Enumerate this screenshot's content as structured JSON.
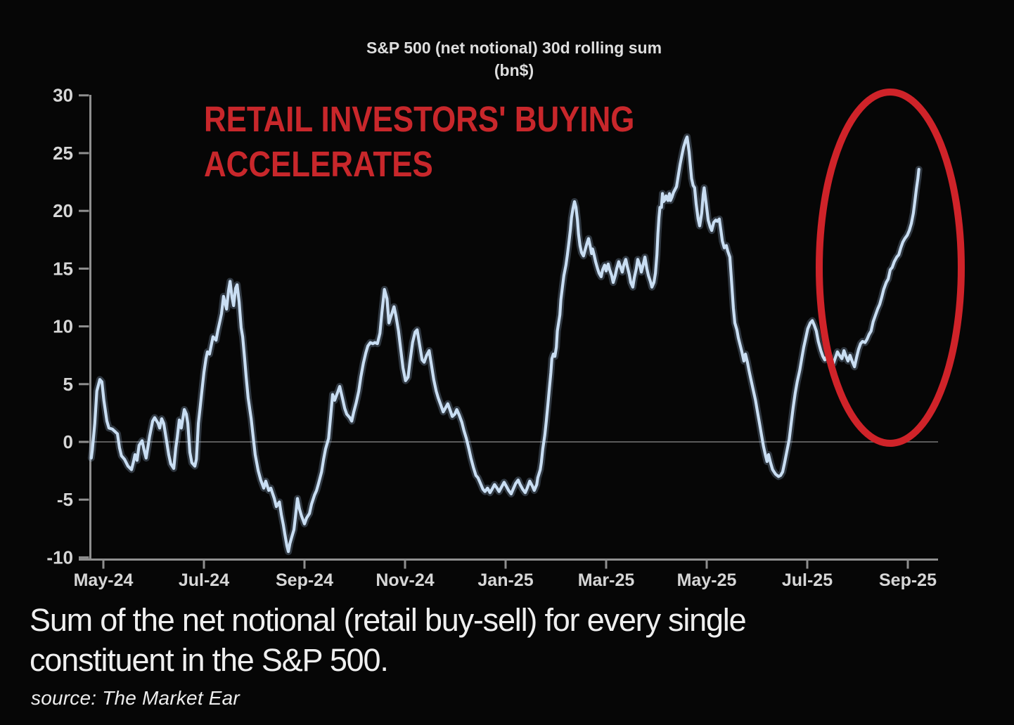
{
  "title": {
    "line1": "S&P 500 (net notional) 30d rolling sum",
    "line2": "(bn$)"
  },
  "annotation": {
    "line1": "RETAIL INVESTORS' BUYING",
    "line2": "ACCELERATES",
    "color": "#c8272b"
  },
  "caption": {
    "line1": "Sum of the net notional (retail buy-sell) for every single",
    "line2": "constituent in the S&P 500."
  },
  "source": {
    "text": "source: The Market Ear"
  },
  "colors": {
    "background": "#060606",
    "axis": "#8f8f8f",
    "zero_line": "#5a5a5a",
    "tick_text": "#d6d6d6",
    "series_line": "#c9def3",
    "series_glow": "rgba(165,198,232,0.26)",
    "highlight_red": "#cf2329"
  },
  "chart_data": {
    "type": "line",
    "title": "S&P 500 (net notional) 30d rolling sum (bn$)",
    "xlabel": "",
    "ylabel": "",
    "ylim": [
      -10,
      30
    ],
    "y_ticks": [
      30,
      25,
      20,
      15,
      10,
      5,
      0,
      -5,
      -10
    ],
    "x_tick_labels": [
      "May-24",
      "Jul-24",
      "Sep-24",
      "Nov-24",
      "Jan-25",
      "Mar-25",
      "May-25",
      "Jul-25",
      "Sep-25"
    ],
    "x_tick_months": [
      0,
      2,
      4,
      6,
      8,
      10,
      12,
      14,
      16
    ],
    "grid": "zero-line-only",
    "legend": "none",
    "x_unit": "months since May-24 tick",
    "highlight_ellipse": {
      "note": "circles the final acceleration into Sep-25",
      "color": "#cf2329"
    },
    "points": [
      [
        -0.24,
        -1.4
      ],
      [
        -0.22,
        -0.7
      ],
      [
        -0.17,
        1.6
      ],
      [
        -0.13,
        4.4
      ],
      [
        -0.07,
        5.4
      ],
      [
        -0.03,
        5.2
      ],
      [
        0.01,
        3.6
      ],
      [
        0.07,
        1.8
      ],
      [
        0.11,
        1.2
      ],
      [
        0.18,
        1.1
      ],
      [
        0.28,
        0.7
      ],
      [
        0.32,
        -0.5
      ],
      [
        0.36,
        -1.2
      ],
      [
        0.42,
        -1.5
      ],
      [
        0.49,
        -2.1
      ],
      [
        0.56,
        -2.4
      ],
      [
        0.6,
        -1.7
      ],
      [
        0.63,
        -1.1
      ],
      [
        0.67,
        -1.6
      ],
      [
        0.71,
        -0.3
      ],
      [
        0.77,
        0.1
      ],
      [
        0.81,
        -0.7
      ],
      [
        0.85,
        -1.4
      ],
      [
        0.92,
        0.5
      ],
      [
        0.98,
        1.8
      ],
      [
        1.02,
        2.1
      ],
      [
        1.09,
        1.6
      ],
      [
        1.12,
        1.2
      ],
      [
        1.16,
        2.0
      ],
      [
        1.2,
        1.6
      ],
      [
        1.26,
        0.0
      ],
      [
        1.3,
        -1.1
      ],
      [
        1.34,
        -1.9
      ],
      [
        1.4,
        -2.3
      ],
      [
        1.44,
        -0.5
      ],
      [
        1.47,
        0.4
      ],
      [
        1.51,
        1.9
      ],
      [
        1.55,
        1.2
      ],
      [
        1.61,
        2.8
      ],
      [
        1.65,
        2.4
      ],
      [
        1.68,
        1.6
      ],
      [
        1.72,
        -0.9
      ],
      [
        1.76,
        -1.8
      ],
      [
        1.82,
        -2.1
      ],
      [
        1.85,
        -1.5
      ],
      [
        1.89,
        1.6
      ],
      [
        1.92,
        2.8
      ],
      [
        1.96,
        4.4
      ],
      [
        2.0,
        6.0
      ],
      [
        2.04,
        7.2
      ],
      [
        2.07,
        7.8
      ],
      [
        2.11,
        7.6
      ],
      [
        2.18,
        9.1
      ],
      [
        2.24,
        8.8
      ],
      [
        2.28,
        9.7
      ],
      [
        2.32,
        10.5
      ],
      [
        2.35,
        11.1
      ],
      [
        2.39,
        12.6
      ],
      [
        2.45,
        11.5
      ],
      [
        2.49,
        13.1
      ],
      [
        2.52,
        13.9
      ],
      [
        2.56,
        12.5
      ],
      [
        2.59,
        11.8
      ],
      [
        2.63,
        13.3
      ],
      [
        2.66,
        13.6
      ],
      [
        2.7,
        12.1
      ],
      [
        2.74,
        9.9
      ],
      [
        2.77,
        9.1
      ],
      [
        2.81,
        7.2
      ],
      [
        2.84,
        5.6
      ],
      [
        2.88,
        3.8
      ],
      [
        2.94,
        2.0
      ],
      [
        2.98,
        0.4
      ],
      [
        3.02,
        -1.1
      ],
      [
        3.08,
        -2.5
      ],
      [
        3.13,
        -3.3
      ],
      [
        3.19,
        -4.0
      ],
      [
        3.23,
        -3.4
      ],
      [
        3.29,
        -4.2
      ],
      [
        3.33,
        -4.0
      ],
      [
        3.4,
        -4.9
      ],
      [
        3.44,
        -5.6
      ],
      [
        3.5,
        -5.2
      ],
      [
        3.54,
        -6.3
      ],
      [
        3.58,
        -7.2
      ],
      [
        3.61,
        -8.0
      ],
      [
        3.65,
        -9.0
      ],
      [
        3.68,
        -9.5
      ],
      [
        3.71,
        -8.8
      ],
      [
        3.75,
        -8.2
      ],
      [
        3.79,
        -7.6
      ],
      [
        3.82,
        -6.5
      ],
      [
        3.86,
        -4.9
      ],
      [
        3.9,
        -5.8
      ],
      [
        3.94,
        -6.4
      ],
      [
        4.0,
        -7.1
      ],
      [
        4.04,
        -6.6
      ],
      [
        4.1,
        -6.2
      ],
      [
        4.14,
        -5.4
      ],
      [
        4.2,
        -4.6
      ],
      [
        4.24,
        -4.2
      ],
      [
        4.28,
        -3.6
      ],
      [
        4.34,
        -2.6
      ],
      [
        4.38,
        -1.5
      ],
      [
        4.42,
        -0.6
      ],
      [
        4.48,
        0.3
      ],
      [
        4.52,
        2.2
      ],
      [
        4.56,
        4.1
      ],
      [
        4.6,
        3.6
      ],
      [
        4.66,
        4.3
      ],
      [
        4.7,
        4.8
      ],
      [
        4.76,
        3.7
      ],
      [
        4.8,
        2.9
      ],
      [
        4.84,
        2.4
      ],
      [
        4.9,
        2.1
      ],
      [
        4.94,
        1.8
      ],
      [
        4.98,
        2.6
      ],
      [
        5.03,
        3.4
      ],
      [
        5.08,
        4.4
      ],
      [
        5.12,
        5.6
      ],
      [
        5.17,
        6.8
      ],
      [
        5.22,
        7.7
      ],
      [
        5.26,
        8.3
      ],
      [
        5.31,
        8.6
      ],
      [
        5.36,
        8.5
      ],
      [
        5.4,
        8.6
      ],
      [
        5.45,
        8.5
      ],
      [
        5.5,
        9.4
      ],
      [
        5.54,
        11.2
      ],
      [
        5.59,
        13.2
      ],
      [
        5.64,
        12.4
      ],
      [
        5.68,
        10.3
      ],
      [
        5.73,
        11.0
      ],
      [
        5.78,
        11.7
      ],
      [
        5.82,
        10.9
      ],
      [
        5.87,
        9.6
      ],
      [
        5.92,
        7.8
      ],
      [
        5.96,
        6.4
      ],
      [
        6.01,
        5.3
      ],
      [
        6.06,
        5.6
      ],
      [
        6.1,
        7.0
      ],
      [
        6.15,
        8.6
      ],
      [
        6.2,
        9.5
      ],
      [
        6.24,
        9.7
      ],
      [
        6.29,
        8.4
      ],
      [
        6.34,
        7.1
      ],
      [
        6.38,
        6.9
      ],
      [
        6.43,
        7.5
      ],
      [
        6.48,
        7.9
      ],
      [
        6.52,
        6.8
      ],
      [
        6.57,
        5.4
      ],
      [
        6.62,
        4.4
      ],
      [
        6.66,
        3.8
      ],
      [
        6.71,
        3.2
      ],
      [
        6.76,
        2.6
      ],
      [
        6.8,
        2.9
      ],
      [
        6.85,
        3.3
      ],
      [
        6.9,
        2.7
      ],
      [
        6.94,
        2.2
      ],
      [
        6.99,
        2.4
      ],
      [
        7.03,
        2.8
      ],
      [
        7.08,
        2.3
      ],
      [
        7.13,
        1.7
      ],
      [
        7.17,
        1.0
      ],
      [
        7.22,
        0.3
      ],
      [
        7.27,
        -0.6
      ],
      [
        7.31,
        -1.4
      ],
      [
        7.36,
        -2.2
      ],
      [
        7.41,
        -2.9
      ],
      [
        7.45,
        -3.1
      ],
      [
        7.5,
        -3.6
      ],
      [
        7.55,
        -4.1
      ],
      [
        7.59,
        -4.3
      ],
      [
        7.64,
        -4.0
      ],
      [
        7.69,
        -4.4
      ],
      [
        7.73,
        -4.1
      ],
      [
        7.78,
        -3.7
      ],
      [
        7.83,
        -4.0
      ],
      [
        7.87,
        -4.3
      ],
      [
        7.92,
        -3.9
      ],
      [
        7.97,
        -3.5
      ],
      [
        8.01,
        -3.8
      ],
      [
        8.06,
        -4.2
      ],
      [
        8.11,
        -4.5
      ],
      [
        8.15,
        -4.1
      ],
      [
        8.2,
        -3.6
      ],
      [
        8.25,
        -3.3
      ],
      [
        8.29,
        -3.7
      ],
      [
        8.34,
        -4.1
      ],
      [
        8.39,
        -4.4
      ],
      [
        8.43,
        -4.0
      ],
      [
        8.48,
        -3.4
      ],
      [
        8.53,
        -3.8
      ],
      [
        8.57,
        -4.2
      ],
      [
        8.62,
        -3.7
      ],
      [
        8.64,
        -3.1
      ],
      [
        8.69,
        -2.4
      ],
      [
        8.71,
        -1.8
      ],
      [
        8.74,
        -0.6
      ],
      [
        8.78,
        0.6
      ],
      [
        8.81,
        1.8
      ],
      [
        8.84,
        3.2
      ],
      [
        8.87,
        4.6
      ],
      [
        8.9,
        6.0
      ],
      [
        8.92,
        7.2
      ],
      [
        8.95,
        7.6
      ],
      [
        8.98,
        7.4
      ],
      [
        9.01,
        8.2
      ],
      [
        9.03,
        9.6
      ],
      [
        9.08,
        11.0
      ],
      [
        9.1,
        12.3
      ],
      [
        9.13,
        13.4
      ],
      [
        9.16,
        14.4
      ],
      [
        9.2,
        15.3
      ],
      [
        9.23,
        16.2
      ],
      [
        9.26,
        17.3
      ],
      [
        9.29,
        18.4
      ],
      [
        9.31,
        19.4
      ],
      [
        9.34,
        20.2
      ],
      [
        9.37,
        20.8
      ],
      [
        9.4,
        20.3
      ],
      [
        9.43,
        19.2
      ],
      [
        9.45,
        18.0
      ],
      [
        9.48,
        17.0
      ],
      [
        9.51,
        16.4
      ],
      [
        9.55,
        16.1
      ],
      [
        9.58,
        16.6
      ],
      [
        9.62,
        17.2
      ],
      [
        9.65,
        17.6
      ],
      [
        9.68,
        17.0
      ],
      [
        9.71,
        16.3
      ],
      [
        9.73,
        16.7
      ],
      [
        9.76,
        16.2
      ],
      [
        9.79,
        15.6
      ],
      [
        9.83,
        15.0
      ],
      [
        9.86,
        14.6
      ],
      [
        9.9,
        14.3
      ],
      [
        9.93,
        14.9
      ],
      [
        9.97,
        15.3
      ],
      [
        10.0,
        14.8
      ],
      [
        10.04,
        15.4
      ],
      [
        10.07,
        14.9
      ],
      [
        10.11,
        14.4
      ],
      [
        10.14,
        13.8
      ],
      [
        10.18,
        14.4
      ],
      [
        10.21,
        15.0
      ],
      [
        10.25,
        15.6
      ],
      [
        10.28,
        15.2
      ],
      [
        10.32,
        14.7
      ],
      [
        10.35,
        15.3
      ],
      [
        10.39,
        15.8
      ],
      [
        10.42,
        15.2
      ],
      [
        10.46,
        14.5
      ],
      [
        10.49,
        13.8
      ],
      [
        10.53,
        13.4
      ],
      [
        10.56,
        14.2
      ],
      [
        10.6,
        15.0
      ],
      [
        10.63,
        15.8
      ],
      [
        10.67,
        15.3
      ],
      [
        10.7,
        14.7
      ],
      [
        10.74,
        15.4
      ],
      [
        10.77,
        16.0
      ],
      [
        10.81,
        15.0
      ],
      [
        10.84,
        14.4
      ],
      [
        10.88,
        13.9
      ],
      [
        10.91,
        13.4
      ],
      [
        10.95,
        13.8
      ],
      [
        10.98,
        14.6
      ],
      [
        11.01,
        16.2
      ],
      [
        11.03,
        18.0
      ],
      [
        11.05,
        19.4
      ],
      [
        11.07,
        20.3
      ],
      [
        11.1,
        20.3
      ],
      [
        11.12,
        21.5
      ],
      [
        11.14,
        20.8
      ],
      [
        11.16,
        20.9
      ],
      [
        11.19,
        21.3
      ],
      [
        11.23,
        20.9
      ],
      [
        11.26,
        21.5
      ],
      [
        11.28,
        20.9
      ],
      [
        11.31,
        21.2
      ],
      [
        11.34,
        21.6
      ],
      [
        11.4,
        22.1
      ],
      [
        11.44,
        23.2
      ],
      [
        11.47,
        24.0
      ],
      [
        11.51,
        24.9
      ],
      [
        11.54,
        25.5
      ],
      [
        11.58,
        26.1
      ],
      [
        11.61,
        26.4
      ],
      [
        11.65,
        25.1
      ],
      [
        11.68,
        23.7
      ],
      [
        11.7,
        22.8
      ],
      [
        11.73,
        22.2
      ],
      [
        11.76,
        22.0
      ],
      [
        11.79,
        20.6
      ],
      [
        11.83,
        19.3
      ],
      [
        11.86,
        18.7
      ],
      [
        11.9,
        19.8
      ],
      [
        11.93,
        21.4
      ],
      [
        11.95,
        22.0
      ],
      [
        11.99,
        20.6
      ],
      [
        12.03,
        19.2
      ],
      [
        12.07,
        18.6
      ],
      [
        12.1,
        18.3
      ],
      [
        12.14,
        19.0
      ],
      [
        12.18,
        19.2
      ],
      [
        12.21,
        19.1
      ],
      [
        12.25,
        19.3
      ],
      [
        12.28,
        18.4
      ],
      [
        12.31,
        17.4
      ],
      [
        12.35,
        16.8
      ],
      [
        12.39,
        17.0
      ],
      [
        12.42,
        16.5
      ],
      [
        12.46,
        16.0
      ],
      [
        12.49,
        14.2
      ],
      [
        12.53,
        11.6
      ],
      [
        12.56,
        10.3
      ],
      [
        12.6,
        9.7
      ],
      [
        12.63,
        9.0
      ],
      [
        12.67,
        8.3
      ],
      [
        12.7,
        7.8
      ],
      [
        12.74,
        7.0
      ],
      [
        12.77,
        7.6
      ],
      [
        12.81,
        6.9
      ],
      [
        12.84,
        6.2
      ],
      [
        12.88,
        5.4
      ],
      [
        12.92,
        4.6
      ],
      [
        12.97,
        3.6
      ],
      [
        13.01,
        2.6
      ],
      [
        13.05,
        1.6
      ],
      [
        13.09,
        0.6
      ],
      [
        13.13,
        -0.4
      ],
      [
        13.17,
        -1.2
      ],
      [
        13.2,
        -1.7
      ],
      [
        13.23,
        -1.1
      ],
      [
        13.27,
        -1.8
      ],
      [
        13.31,
        -2.4
      ],
      [
        13.37,
        -2.8
      ],
      [
        13.43,
        -3.0
      ],
      [
        13.47,
        -2.9
      ],
      [
        13.51,
        -2.6
      ],
      [
        13.55,
        -1.8
      ],
      [
        13.59,
        -0.9
      ],
      [
        13.64,
        0.2
      ],
      [
        13.68,
        1.6
      ],
      [
        13.72,
        3.0
      ],
      [
        13.76,
        4.2
      ],
      [
        13.8,
        5.2
      ],
      [
        13.85,
        6.2
      ],
      [
        13.89,
        7.2
      ],
      [
        13.93,
        8.2
      ],
      [
        13.97,
        9.0
      ],
      [
        14.01,
        9.8
      ],
      [
        14.06,
        10.3
      ],
      [
        14.1,
        10.5
      ],
      [
        14.14,
        10.1
      ],
      [
        14.18,
        9.6
      ],
      [
        14.22,
        8.7
      ],
      [
        14.27,
        7.9
      ],
      [
        14.31,
        7.4
      ],
      [
        14.35,
        7.1
      ],
      [
        14.39,
        7.4
      ],
      [
        14.43,
        7.2
      ],
      [
        14.48,
        6.9
      ],
      [
        14.52,
        6.8
      ],
      [
        14.56,
        7.3
      ],
      [
        14.6,
        7.8
      ],
      [
        14.64,
        7.5
      ],
      [
        14.69,
        7.2
      ],
      [
        14.73,
        7.9
      ],
      [
        14.77,
        7.4
      ],
      [
        14.81,
        7.0
      ],
      [
        14.85,
        7.5
      ],
      [
        14.9,
        6.9
      ],
      [
        14.94,
        6.5
      ],
      [
        14.98,
        7.3
      ],
      [
        15.02,
        8.0
      ],
      [
        15.06,
        8.5
      ],
      [
        15.1,
        8.7
      ],
      [
        15.15,
        8.6
      ],
      [
        15.19,
        8.9
      ],
      [
        15.23,
        9.3
      ],
      [
        15.27,
        9.6
      ],
      [
        15.31,
        10.4
      ],
      [
        15.36,
        11.0
      ],
      [
        15.4,
        11.5
      ],
      [
        15.44,
        11.9
      ],
      [
        15.48,
        12.5
      ],
      [
        15.52,
        13.2
      ],
      [
        15.57,
        13.8
      ],
      [
        15.61,
        14.1
      ],
      [
        15.65,
        14.9
      ],
      [
        15.69,
        15.1
      ],
      [
        15.73,
        15.6
      ],
      [
        15.78,
        16.0
      ],
      [
        15.82,
        16.2
      ],
      [
        15.86,
        16.8
      ],
      [
        15.9,
        17.3
      ],
      [
        15.94,
        17.6
      ],
      [
        15.99,
        17.9
      ],
      [
        16.03,
        18.3
      ],
      [
        16.07,
        18.9
      ],
      [
        16.11,
        19.8
      ],
      [
        16.14,
        20.8
      ],
      [
        16.17,
        21.9
      ],
      [
        16.2,
        22.8
      ],
      [
        16.22,
        23.6
      ]
    ]
  }
}
